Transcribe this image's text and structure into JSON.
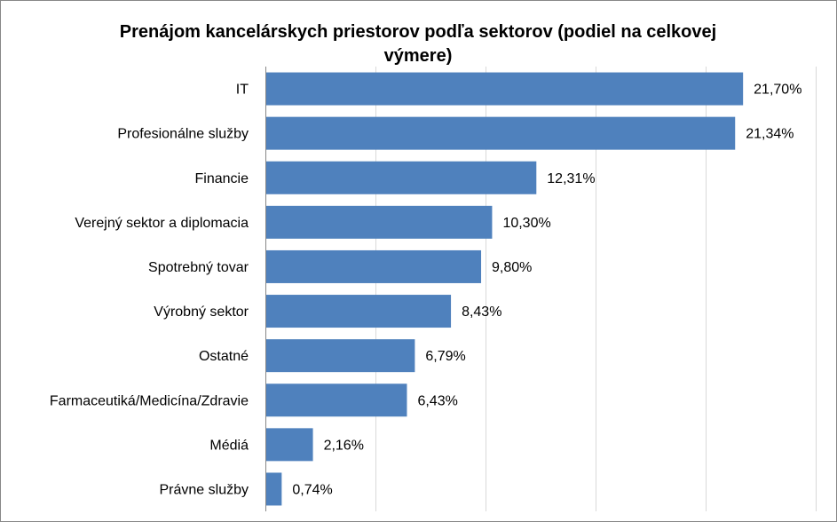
{
  "chart_data": {
    "type": "bar",
    "orientation": "horizontal",
    "title_lines": [
      "Prenájom kancelárskych priestorov podľa sektorov (podiel na celkovej",
      "výmere)"
    ],
    "categories": [
      "IT",
      "Profesionálne služby",
      "Financie",
      "Verejný sektor a diplomacia",
      "Spotrebný tovar",
      "Výrobný sektor",
      "Ostatné",
      "Farmaceutiká/Medicína/Zdravie",
      "Médiá",
      "Právne služby"
    ],
    "values": [
      21.7,
      21.34,
      12.31,
      10.3,
      9.8,
      8.43,
      6.79,
      6.43,
      2.16,
      0.74
    ],
    "value_labels": [
      "21,70%",
      "21,34%",
      "12,31%",
      "10,30%",
      "9,80%",
      "8,43%",
      "6,79%",
      "6,43%",
      "2,16%",
      "0,74%"
    ],
    "xlim": [
      0,
      25
    ],
    "x_gridline_step": 5,
    "grid": true,
    "legend": "none",
    "bar_color": "#4f81bd"
  }
}
